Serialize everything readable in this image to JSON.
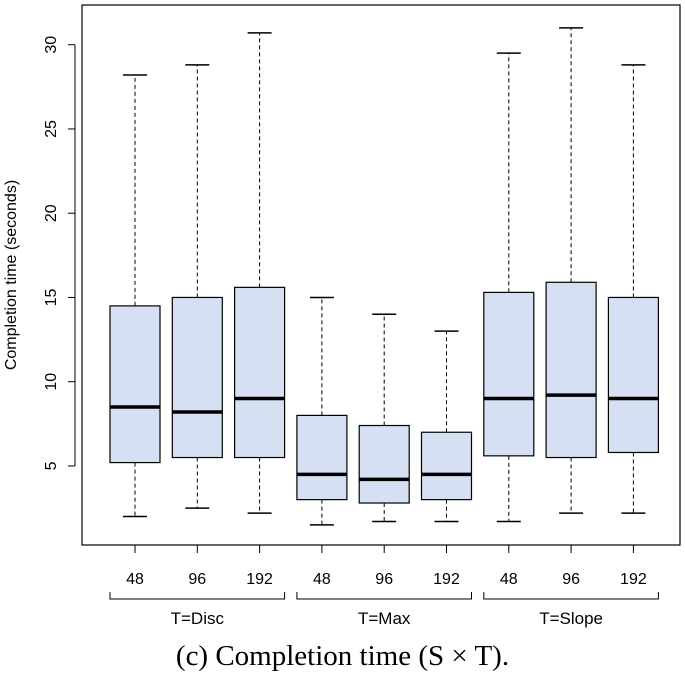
{
  "chart_data": {
    "type": "boxplot",
    "title": "",
    "xlabel": "",
    "ylabel": "Completion time (seconds)",
    "ylim": [
      0,
      32
    ],
    "yticks": [
      5,
      10,
      15,
      20,
      25,
      30
    ],
    "group_labels": [
      "T=Disc",
      "T=Max",
      "T=Slope"
    ],
    "categories": [
      "48",
      "96",
      "192",
      "48",
      "96",
      "192",
      "48",
      "96",
      "192"
    ],
    "boxes": [
      {
        "group": "T=Disc",
        "label": "48",
        "min": 2.0,
        "q1": 5.2,
        "median": 8.5,
        "q3": 14.5,
        "max": 28.2
      },
      {
        "group": "T=Disc",
        "label": "96",
        "min": 2.5,
        "q1": 5.5,
        "median": 8.2,
        "q3": 15.0,
        "max": 28.8
      },
      {
        "group": "T=Disc",
        "label": "192",
        "min": 2.2,
        "q1": 5.5,
        "median": 9.0,
        "q3": 15.6,
        "max": 30.7
      },
      {
        "group": "T=Max",
        "label": "48",
        "min": 1.5,
        "q1": 3.0,
        "median": 4.5,
        "q3": 8.0,
        "max": 15.0
      },
      {
        "group": "T=Max",
        "label": "96",
        "min": 1.7,
        "q1": 2.8,
        "median": 4.2,
        "q3": 7.4,
        "max": 14.0
      },
      {
        "group": "T=Max",
        "label": "192",
        "min": 1.7,
        "q1": 3.0,
        "median": 4.5,
        "q3": 7.0,
        "max": 13.0
      },
      {
        "group": "T=Slope",
        "label": "48",
        "min": 1.7,
        "q1": 5.6,
        "median": 9.0,
        "q3": 15.3,
        "max": 29.5
      },
      {
        "group": "T=Slope",
        "label": "96",
        "min": 2.2,
        "q1": 5.5,
        "median": 9.2,
        "q3": 15.9,
        "max": 31.0
      },
      {
        "group": "T=Slope",
        "label": "192",
        "min": 2.2,
        "q1": 5.8,
        "median": 9.0,
        "q3": 15.0,
        "max": 28.8
      }
    ],
    "grid": false,
    "box_fill": "#d6e0f3",
    "box_stroke": "#000000"
  },
  "caption": "(c) Completion time (S × T)."
}
